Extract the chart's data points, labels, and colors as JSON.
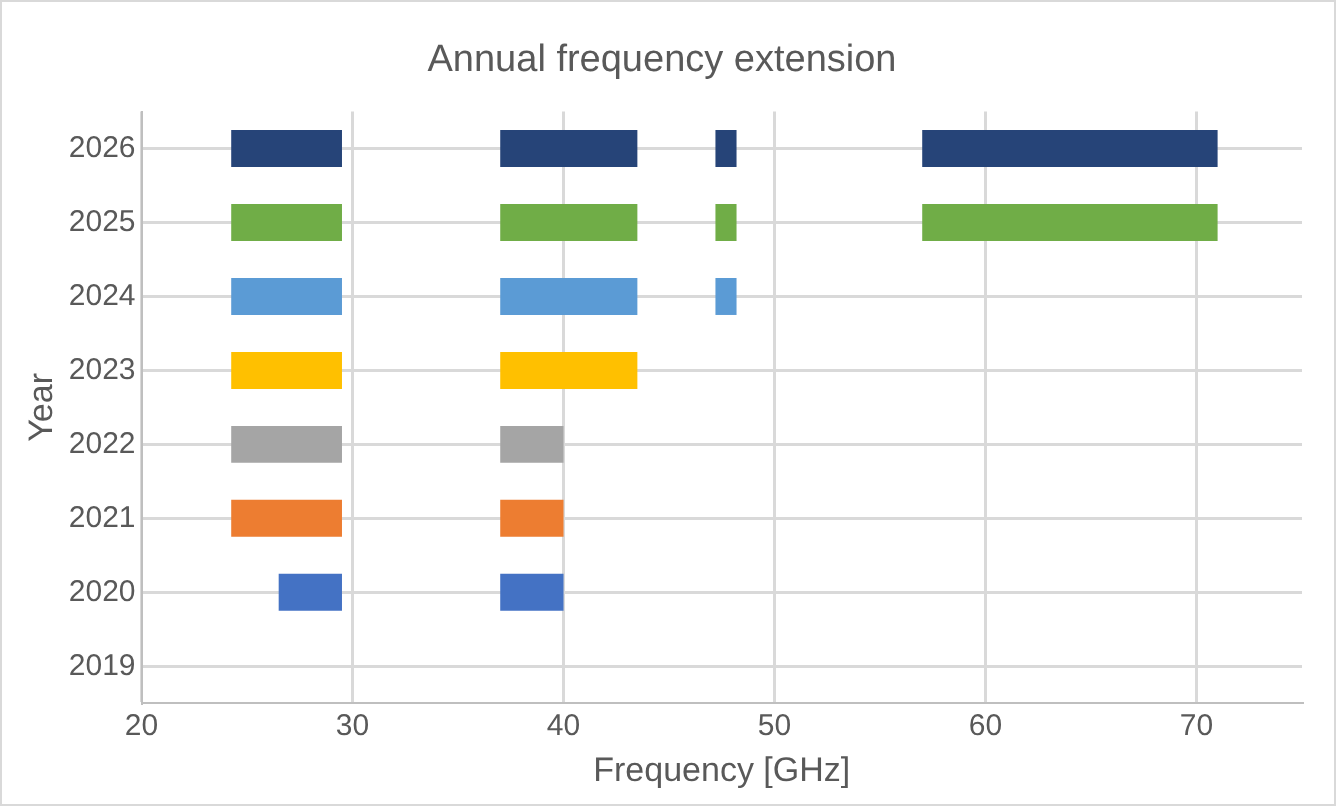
{
  "chart_data": {
    "type": "bar",
    "orientation": "horizontal",
    "title": "Annual frequency extension",
    "xlabel": "Frequency [GHz]",
    "ylabel": "Year",
    "categories": [
      "2026",
      "2025",
      "2024",
      "2023",
      "2022",
      "2021",
      "2020",
      "2019"
    ],
    "series": [
      {
        "colors": [
          "#264478",
          "#70ad47",
          "#5b9bd5",
          "#ffc000",
          "#a5a5a5",
          "#ed7d31",
          "#4472c4",
          null
        ],
        "base": [
          24.25,
          24.25,
          24.25,
          24.25,
          24.25,
          24.25,
          26.5,
          null
        ],
        "values": [
          5.25,
          5.25,
          5.25,
          5.25,
          5.25,
          5.25,
          3,
          null
        ]
      },
      {
        "colors": [
          "#264478",
          "#70ad47",
          "#5b9bd5",
          "#ffc000",
          "#a5a5a5",
          "#ed7d31",
          "#4472c4",
          null
        ],
        "base": [
          37,
          37,
          37,
          37,
          37,
          37,
          37,
          null
        ],
        "values": [
          6.5,
          6.5,
          6.5,
          6.5,
          3,
          3,
          3,
          null
        ]
      },
      {
        "colors": [
          "#264478",
          "#70ad47",
          "#5b9bd5",
          null,
          null,
          null,
          null,
          null
        ],
        "base": [
          47.2,
          47.2,
          47.2,
          null,
          null,
          null,
          null,
          null
        ],
        "values": [
          1,
          1,
          1,
          null,
          null,
          null,
          null,
          null
        ]
      },
      {
        "colors": [
          "#264478",
          "#70ad47",
          null,
          null,
          null,
          null,
          null,
          null
        ],
        "base": [
          57,
          57,
          null,
          null,
          null,
          null,
          null,
          null
        ],
        "values": [
          14,
          14,
          null,
          null,
          null,
          null,
          null,
          null
        ]
      }
    ],
    "xlim": [
      20,
      75
    ],
    "xticks": [
      20,
      30,
      40,
      50,
      60,
      70
    ],
    "grid": true
  }
}
